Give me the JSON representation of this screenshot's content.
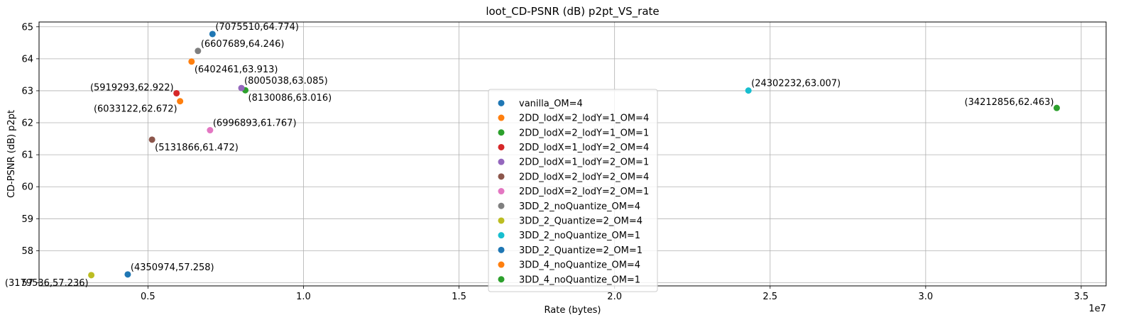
{
  "chart_data": {
    "type": "scatter",
    "title": "loot_CD-PSNR (dB) p2pt_VS_rate",
    "xlabel": "Rate (bytes)",
    "ylabel": "CD-PSNR (dB) p2pt",
    "x_offset_label": "1e7",
    "xlim": [
      1500000,
      35800000
    ],
    "ylim": [
      56.9,
      65.15
    ],
    "grid": true,
    "legend_position": "lower center",
    "x_ticks": [
      {
        "value": 5000000,
        "label": "0.5"
      },
      {
        "value": 10000000,
        "label": "1.0"
      },
      {
        "value": 15000000,
        "label": "1.5"
      },
      {
        "value": 20000000,
        "label": "2.0"
      },
      {
        "value": 25000000,
        "label": "2.5"
      },
      {
        "value": 30000000,
        "label": "3.0"
      },
      {
        "value": 35000000,
        "label": "3.5"
      }
    ],
    "y_ticks": [
      {
        "value": 57,
        "label": "57"
      },
      {
        "value": 58,
        "label": "58"
      },
      {
        "value": 59,
        "label": "59"
      },
      {
        "value": 60,
        "label": "60"
      },
      {
        "value": 61,
        "label": "61"
      },
      {
        "value": 62,
        "label": "62"
      },
      {
        "value": 63,
        "label": "63"
      },
      {
        "value": 64,
        "label": "64"
      },
      {
        "value": 65,
        "label": "65"
      }
    ],
    "series": [
      {
        "name": "vanilla_OM=4",
        "color": "#1f77b4",
        "x": 7075510,
        "y": 64.774,
        "label": "(7075510,64.774)",
        "label_side": "right"
      },
      {
        "name": "2DD_lodX=2_lodY=1_OM=4",
        "color": "#ff7f0e",
        "x": 6402461,
        "y": 63.913,
        "label": "(6402461,63.913)",
        "label_side": "below-right"
      },
      {
        "name": "2DD_lodX=2_lodY=1_OM=1",
        "color": "#2ca02c",
        "x": 8130086,
        "y": 63.016,
        "label": "(8130086,63.016)",
        "label_side": "below-right"
      },
      {
        "name": "2DD_lodX=1_lodY=2_OM=4",
        "color": "#d62728",
        "x": 5919293,
        "y": 62.922,
        "label": "(5919293,62.922)",
        "label_side": "left"
      },
      {
        "name": "2DD_lodX=1_lodY=2_OM=1",
        "color": "#9467bd",
        "x": 8005038,
        "y": 63.085,
        "label": "(8005038,63.085)",
        "label_side": "right"
      },
      {
        "name": "2DD_lodX=2_lodY=2_OM=4",
        "color": "#8c564b",
        "x": 5131866,
        "y": 61.472,
        "label": "(5131866,61.472)",
        "label_side": "below-right"
      },
      {
        "name": "2DD_lodX=2_lodY=2_OM=1",
        "color": "#e377c2",
        "x": 6996893,
        "y": 61.767,
        "label": "(6996893,61.767)",
        "label_side": "right"
      },
      {
        "name": "3DD_2_noQuantize_OM=4",
        "color": "#7f7f7f",
        "x": 6607689,
        "y": 64.246,
        "label": "(6607689,64.246)",
        "label_side": "right"
      },
      {
        "name": "3DD_2_Quantize=2_OM=4",
        "color": "#bcbd22",
        "x": 3179536,
        "y": 57.236,
        "label": "(3179536,57.236)",
        "label_side": "below-left"
      },
      {
        "name": "3DD_2_noQuantize_OM=1",
        "color": "#17becf",
        "x": 24302232,
        "y": 63.007,
        "label": "(24302232,63.007)",
        "label_side": "right"
      },
      {
        "name": "3DD_2_Quantize=2_OM=1",
        "color": "#1f77b4",
        "x": 4350974,
        "y": 57.258,
        "label": "(4350974,57.258)",
        "label_side": "right"
      },
      {
        "name": "3DD_4_noQuantize_OM=4",
        "color": "#ff7f0e",
        "x": 6033122,
        "y": 62.672,
        "label": "(6033122,62.672)",
        "label_side": "below-left"
      },
      {
        "name": "3DD_4_noQuantize_OM=1",
        "color": "#2ca02c",
        "x": 34212856,
        "y": 62.463,
        "label": "(34212856,62.463)",
        "label_side": "left"
      }
    ]
  }
}
